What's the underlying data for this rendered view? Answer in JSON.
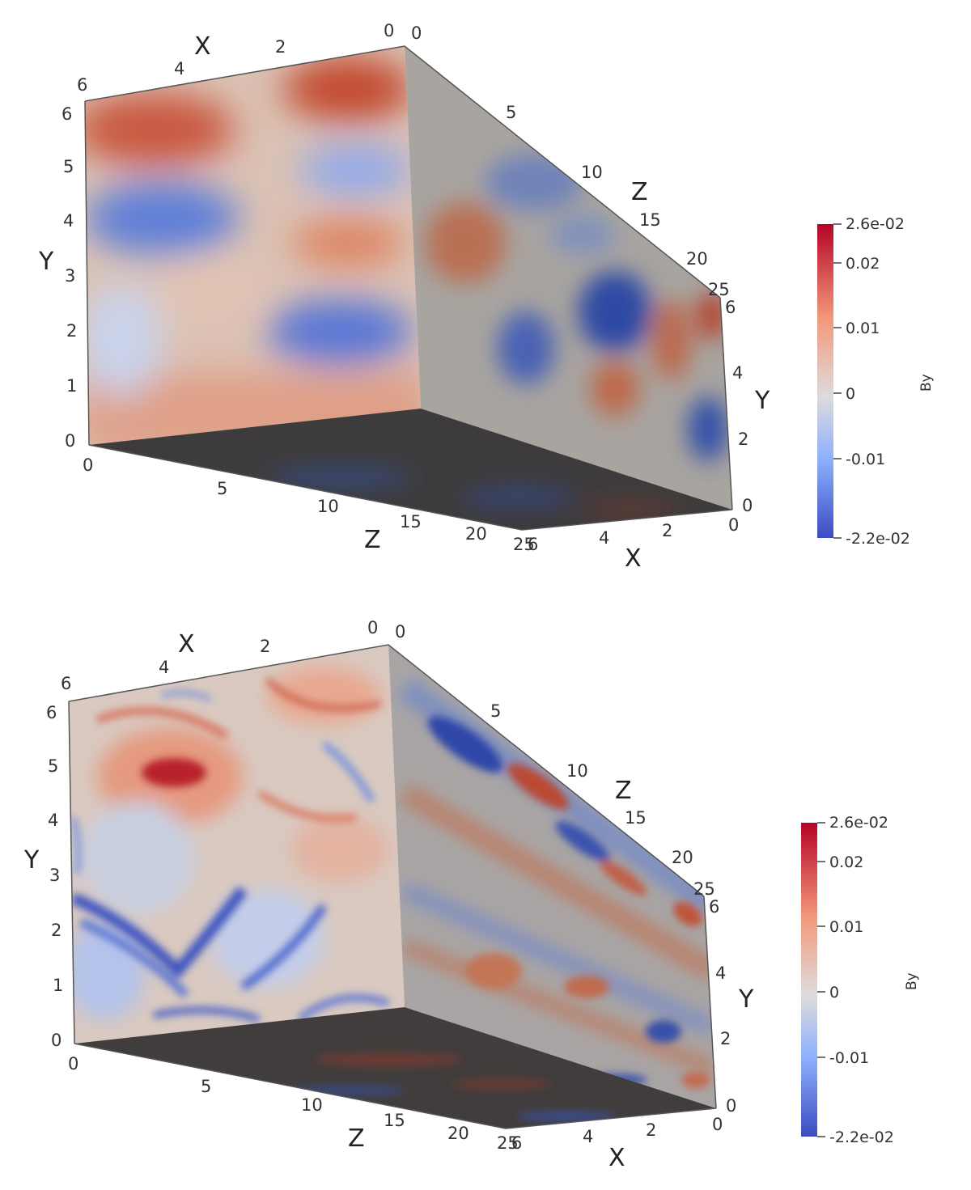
{
  "colors": {
    "cold": "#3b4cc0",
    "neutral": "#dddcdc",
    "warm": "#b40426",
    "mid_blue": "#6f91f2",
    "mid_red": "#e7745b"
  },
  "panels": [
    {
      "field_name": "By",
      "axis_labels": {
        "x": "X",
        "y": "Y",
        "z": "Z"
      },
      "ticks": {
        "top_x": [
          "6",
          "4",
          "2",
          "0"
        ],
        "top_z": [
          "0",
          "5",
          "10",
          "15",
          "20",
          "25"
        ],
        "left_y": [
          "0",
          "1",
          "2",
          "3",
          "4",
          "5",
          "6"
        ],
        "bottom_z": [
          "0",
          "5",
          "10",
          "15",
          "20",
          "25"
        ],
        "bottom_x": [
          "6",
          "4",
          "2",
          "0"
        ],
        "right_y": [
          "0",
          "2",
          "4",
          "6"
        ]
      },
      "colorbar": {
        "max_label": "2.6e-02",
        "min_label": "-2.2e-02",
        "tick_labels": [
          "0.02",
          "0.01",
          "0",
          "-0.01"
        ]
      }
    },
    {
      "field_name": "By",
      "axis_labels": {
        "x": "X",
        "y": "Y",
        "z": "Z"
      },
      "ticks": {
        "top_x": [
          "6",
          "4",
          "2",
          "0"
        ],
        "top_z": [
          "0",
          "5",
          "10",
          "15",
          "20",
          "25"
        ],
        "left_y": [
          "0",
          "1",
          "2",
          "3",
          "4",
          "5",
          "6"
        ],
        "bottom_z": [
          "0",
          "5",
          "10",
          "15",
          "20",
          "25"
        ],
        "bottom_x": [
          "6",
          "4",
          "2",
          "0"
        ],
        "right_y": [
          "0",
          "2",
          "4",
          "6"
        ]
      },
      "colorbar": {
        "max_label": "2.6e-02",
        "min_label": "-2.2e-02",
        "tick_labels": [
          "0.02",
          "0.01",
          "0",
          "-0.01"
        ]
      }
    }
  ]
}
